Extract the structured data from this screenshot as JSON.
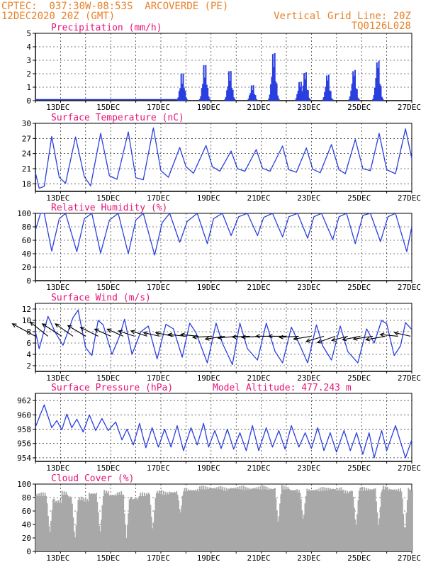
{
  "header": {
    "line1_left": "CPTEC:  037:30W-08:53S  ARCOVERDE (PE)",
    "line2_left": "12DEC2020 20Z (GMT)",
    "line1_right": "Vertical Grid Line: 20Z",
    "line2_right": "TQ0126L028"
  },
  "colors": {
    "header": "#e8812a",
    "title": "#e8127a",
    "line": "#2a3fe0",
    "bars": "#2a3fe0",
    "cloud": "#a8a8a8",
    "grid": "#000000"
  },
  "x_tick_labels": [
    "13DEC",
    "15DEC",
    "17DEC",
    "19DEC",
    "21DEC",
    "23DEC",
    "25DEC",
    "27DEC"
  ],
  "chart_data": [
    {
      "type": "bar",
      "title": "Precipitation (mm/h)",
      "ylim": [
        0,
        5
      ],
      "yticks": [
        0,
        1,
        2,
        3,
        4,
        5
      ],
      "day_range": [
        12.1,
        27.1
      ],
      "events": [
        {
          "day": 17.95,
          "peak": 2.3
        },
        {
          "day": 18.85,
          "peak": 3.0
        },
        {
          "day": 19.85,
          "peak": 2.5
        },
        {
          "day": 20.75,
          "peak": 1.3
        },
        {
          "day": 21.6,
          "peak": 4.0
        },
        {
          "day": 22.65,
          "peak": 1.6
        },
        {
          "day": 22.85,
          "peak": 2.4
        },
        {
          "day": 23.75,
          "peak": 2.2
        },
        {
          "day": 24.8,
          "peak": 2.6
        },
        {
          "day": 25.75,
          "peak": 3.4
        }
      ]
    },
    {
      "type": "line",
      "title": "Surface Temperature (nC)",
      "ylim": [
        16.5,
        30
      ],
      "yticks": [
        18,
        21,
        24,
        27,
        30
      ],
      "points": [
        [
          12.1,
          20.2
        ],
        [
          12.25,
          17.1
        ],
        [
          12.45,
          17.5
        ],
        [
          12.75,
          27.4
        ],
        [
          13.05,
          19.3
        ],
        [
          13.3,
          18.1
        ],
        [
          13.7,
          27.3
        ],
        [
          14.05,
          19.4
        ],
        [
          14.3,
          17.6
        ],
        [
          14.7,
          28.0
        ],
        [
          15.05,
          19.6
        ],
        [
          15.35,
          18.9
        ],
        [
          15.8,
          28.3
        ],
        [
          16.1,
          19.2
        ],
        [
          16.4,
          18.8
        ],
        [
          16.8,
          29.1
        ],
        [
          17.1,
          20.6
        ],
        [
          17.4,
          19.3
        ],
        [
          17.85,
          25.2
        ],
        [
          18.1,
          21.4
        ],
        [
          18.4,
          20.1
        ],
        [
          18.9,
          25.6
        ],
        [
          19.15,
          21.4
        ],
        [
          19.45,
          20.5
        ],
        [
          19.9,
          24.5
        ],
        [
          20.15,
          21.0
        ],
        [
          20.45,
          20.5
        ],
        [
          20.9,
          24.8
        ],
        [
          21.15,
          21.1
        ],
        [
          21.45,
          20.5
        ],
        [
          21.95,
          25.5
        ],
        [
          22.2,
          20.8
        ],
        [
          22.5,
          20.3
        ],
        [
          22.9,
          25.1
        ],
        [
          23.15,
          20.9
        ],
        [
          23.45,
          20.2
        ],
        [
          23.9,
          25.8
        ],
        [
          24.2,
          20.8
        ],
        [
          24.45,
          20.0
        ],
        [
          24.85,
          26.8
        ],
        [
          25.15,
          21.0
        ],
        [
          25.45,
          20.6
        ],
        [
          25.8,
          28.0
        ],
        [
          26.1,
          20.8
        ],
        [
          26.45,
          20.0
        ],
        [
          26.85,
          28.9
        ],
        [
          27.1,
          23.0
        ]
      ]
    },
    {
      "type": "line",
      "title": "Relative Humidity (%)",
      "ylim": [
        0,
        100
      ],
      "yticks": [
        0,
        20,
        40,
        60,
        80,
        100
      ],
      "points": [
        [
          12.1,
          75
        ],
        [
          12.3,
          100
        ],
        [
          12.45,
          100
        ],
        [
          12.75,
          44
        ],
        [
          13.05,
          92
        ],
        [
          13.3,
          100
        ],
        [
          13.75,
          43
        ],
        [
          14.05,
          92
        ],
        [
          14.35,
          100
        ],
        [
          14.7,
          41
        ],
        [
          15.05,
          90
        ],
        [
          15.4,
          100
        ],
        [
          15.8,
          40
        ],
        [
          16.1,
          90
        ],
        [
          16.4,
          100
        ],
        [
          16.85,
          38
        ],
        [
          17.15,
          86
        ],
        [
          17.45,
          100
        ],
        [
          17.85,
          57
        ],
        [
          18.15,
          88
        ],
        [
          18.55,
          100
        ],
        [
          18.95,
          55
        ],
        [
          19.2,
          92
        ],
        [
          19.55,
          100
        ],
        [
          19.9,
          67
        ],
        [
          20.2,
          95
        ],
        [
          20.55,
          100
        ],
        [
          20.95,
          67
        ],
        [
          21.2,
          94
        ],
        [
          21.55,
          100
        ],
        [
          21.95,
          65
        ],
        [
          22.2,
          95
        ],
        [
          22.55,
          100
        ],
        [
          22.95,
          63
        ],
        [
          23.2,
          95
        ],
        [
          23.5,
          100
        ],
        [
          23.95,
          61
        ],
        [
          24.2,
          95
        ],
        [
          24.5,
          100
        ],
        [
          24.85,
          55
        ],
        [
          25.15,
          97
        ],
        [
          25.45,
          100
        ],
        [
          25.85,
          58
        ],
        [
          26.15,
          95
        ],
        [
          26.45,
          100
        ],
        [
          26.9,
          43
        ],
        [
          27.1,
          80
        ]
      ]
    },
    {
      "type": "line",
      "title": "Surface Wind (m/s)",
      "ylim": [
        1,
        13
      ],
      "yticks": [
        2,
        4,
        6,
        8,
        10,
        12
      ],
      "points": [
        [
          12.1,
          8
        ],
        [
          12.25,
          5.0
        ],
        [
          12.6,
          10.7
        ],
        [
          12.9,
          7.8
        ],
        [
          13.2,
          5.6
        ],
        [
          13.6,
          10.5
        ],
        [
          13.8,
          11.8
        ],
        [
          14.1,
          5.2
        ],
        [
          14.35,
          3.8
        ],
        [
          14.6,
          10.0
        ],
        [
          14.8,
          9.2
        ],
        [
          15.15,
          4.0
        ],
        [
          15.45,
          7.2
        ],
        [
          15.65,
          10.2
        ],
        [
          15.95,
          4.0
        ],
        [
          16.3,
          8.0
        ],
        [
          16.6,
          9.0
        ],
        [
          16.95,
          3.2
        ],
        [
          17.3,
          9.3
        ],
        [
          17.6,
          8.5
        ],
        [
          17.95,
          3.5
        ],
        [
          18.25,
          9.5
        ],
        [
          18.5,
          7.8
        ],
        [
          18.95,
          2.5
        ],
        [
          19.3,
          9.5
        ],
        [
          19.55,
          6.0
        ],
        [
          19.95,
          2.2
        ],
        [
          20.25,
          9.5
        ],
        [
          20.55,
          5.0
        ],
        [
          20.95,
          3.0
        ],
        [
          21.3,
          9.5
        ],
        [
          21.65,
          4.5
        ],
        [
          21.95,
          2.5
        ],
        [
          22.3,
          8.8
        ],
        [
          22.6,
          6.0
        ],
        [
          22.95,
          2.5
        ],
        [
          23.3,
          9.2
        ],
        [
          23.55,
          5.5
        ],
        [
          23.9,
          3.0
        ],
        [
          24.25,
          9.0
        ],
        [
          24.55,
          4.5
        ],
        [
          24.95,
          2.5
        ],
        [
          25.3,
          8.5
        ],
        [
          25.6,
          6.0
        ],
        [
          25.9,
          10.0
        ],
        [
          26.1,
          9.4
        ],
        [
          26.4,
          3.8
        ],
        [
          26.65,
          5.5
        ],
        [
          26.85,
          9.6
        ],
        [
          27.1,
          8.4
        ]
      ],
      "arrows": [
        {
          "day": 12.1,
          "u": 6.5,
          "v": -3.5
        },
        {
          "day": 12.6,
          "u": 5.0,
          "v": -4.0
        },
        {
          "day": 13.15,
          "u": 5.5,
          "v": -3.5
        },
        {
          "day": 13.6,
          "u": 5.0,
          "v": -3.5
        },
        {
          "day": 14.1,
          "u": 5.0,
          "v": -3.0
        },
        {
          "day": 14.6,
          "u": 5.0,
          "v": -2.5
        },
        {
          "day": 15.1,
          "u": 4.5,
          "v": -2.0
        },
        {
          "day": 15.6,
          "u": 4.5,
          "v": -2.0
        },
        {
          "day": 16.05,
          "u": 4.5,
          "v": -1.5
        },
        {
          "day": 16.55,
          "u": 4.5,
          "v": -1.5
        },
        {
          "day": 17.05,
          "u": 4.5,
          "v": -1.0
        },
        {
          "day": 17.6,
          "u": 5.0,
          "v": -1.0
        },
        {
          "day": 18.1,
          "u": 5.0,
          "v": -0.5
        },
        {
          "day": 18.6,
          "u": 5.0,
          "v": -0.5
        },
        {
          "day": 19.15,
          "u": 5.5,
          "v": 0.3
        },
        {
          "day": 19.65,
          "u": 5.5,
          "v": 0.8
        },
        {
          "day": 20.15,
          "u": 5.5,
          "v": 0.5
        },
        {
          "day": 20.65,
          "u": 5.0,
          "v": 0.2
        },
        {
          "day": 21.1,
          "u": 5.5,
          "v": 0.3
        },
        {
          "day": 21.6,
          "u": 5.0,
          "v": 0.0
        },
        {
          "day": 22.1,
          "u": 5.0,
          "v": 0.0
        },
        {
          "day": 22.6,
          "u": 5.5,
          "v": 0.3
        },
        {
          "day": 23.1,
          "u": 5.0,
          "v": 0.8
        },
        {
          "day": 23.6,
          "u": 5.0,
          "v": 1.5
        },
        {
          "day": 24.05,
          "u": 5.0,
          "v": 1.8
        },
        {
          "day": 24.55,
          "u": 4.5,
          "v": 1.2
        },
        {
          "day": 25.05,
          "u": 5.0,
          "v": 1.0
        },
        {
          "day": 25.55,
          "u": 5.5,
          "v": 0.8
        },
        {
          "day": 26.05,
          "u": 5.5,
          "v": 1.0
        },
        {
          "day": 26.55,
          "u": 5.0,
          "v": -0.5
        },
        {
          "day": 27.05,
          "u": 4.5,
          "v": -1.0
        }
      ]
    },
    {
      "type": "line",
      "title": "Surface Pressure (hPa)",
      "annotation": "Model Altitude: 477.243 m",
      "ylim": [
        953.5,
        963
      ],
      "yticks": [
        954,
        956,
        958,
        960,
        962
      ],
      "points": [
        [
          12.1,
          958.3
        ],
        [
          12.45,
          961.4
        ],
        [
          12.75,
          958.2
        ],
        [
          12.95,
          959.2
        ],
        [
          13.15,
          957.9
        ],
        [
          13.35,
          960.1
        ],
        [
          13.55,
          958.2
        ],
        [
          13.75,
          959.4
        ],
        [
          14.0,
          957.6
        ],
        [
          14.25,
          960.0
        ],
        [
          14.5,
          957.8
        ],
        [
          14.75,
          959.5
        ],
        [
          15.0,
          957.8
        ],
        [
          15.3,
          959.0
        ],
        [
          15.55,
          956.5
        ],
        [
          15.75,
          958.0
        ],
        [
          16.0,
          955.8
        ],
        [
          16.25,
          958.8
        ],
        [
          16.5,
          955.4
        ],
        [
          16.75,
          958.2
        ],
        [
          17.0,
          955.5
        ],
        [
          17.25,
          958.0
        ],
        [
          17.5,
          955.5
        ],
        [
          17.75,
          958.5
        ],
        [
          18.0,
          955.0
        ],
        [
          18.3,
          958.2
        ],
        [
          18.55,
          955.8
        ],
        [
          18.8,
          958.8
        ],
        [
          19.0,
          955.5
        ],
        [
          19.25,
          957.8
        ],
        [
          19.5,
          955.3
        ],
        [
          19.75,
          958.0
        ],
        [
          20.0,
          955.2
        ],
        [
          20.25,
          957.5
        ],
        [
          20.5,
          955.0
        ],
        [
          20.75,
          958.5
        ],
        [
          21.0,
          955.0
        ],
        [
          21.3,
          958.2
        ],
        [
          21.55,
          955.5
        ],
        [
          21.8,
          957.8
        ],
        [
          22.05,
          955.2
        ],
        [
          22.3,
          958.5
        ],
        [
          22.6,
          955.5
        ],
        [
          22.85,
          957.5
        ],
        [
          23.1,
          955.3
        ],
        [
          23.35,
          958.2
        ],
        [
          23.6,
          955.0
        ],
        [
          23.85,
          957.5
        ],
        [
          24.1,
          954.8
        ],
        [
          24.4,
          957.8
        ],
        [
          24.65,
          955.0
        ],
        [
          24.9,
          957.5
        ],
        [
          25.15,
          954.5
        ],
        [
          25.4,
          957.5
        ],
        [
          25.6,
          954.0
        ],
        [
          25.9,
          957.8
        ],
        [
          26.1,
          955.0
        ],
        [
          26.45,
          958.5
        ],
        [
          26.85,
          954.0
        ],
        [
          27.1,
          956.5
        ]
      ]
    },
    {
      "type": "bar",
      "title": "Cloud Cover (%)",
      "ylim": [
        0,
        100
      ],
      "yticks": [
        0,
        20,
        40,
        60,
        80,
        100
      ],
      "segments": [
        [
          12.15,
          88
        ],
        [
          12.5,
          82
        ],
        [
          12.85,
          78
        ],
        [
          13.1,
          90
        ],
        [
          13.35,
          85
        ],
        [
          13.6,
          82
        ],
        [
          13.95,
          80
        ],
        [
          14.2,
          90
        ],
        [
          14.5,
          88
        ],
        [
          14.8,
          92
        ],
        [
          15.0,
          88
        ],
        [
          15.3,
          90
        ],
        [
          15.6,
          85
        ],
        [
          15.9,
          82
        ],
        [
          16.2,
          88
        ],
        [
          16.5,
          90
        ],
        [
          16.8,
          92
        ],
        [
          17.1,
          90
        ],
        [
          17.4,
          92
        ],
        [
          17.7,
          95
        ],
        [
          18.0,
          95
        ],
        [
          18.3,
          95
        ],
        [
          18.6,
          98
        ],
        [
          18.9,
          98
        ],
        [
          19.2,
          98
        ],
        [
          19.5,
          96
        ],
        [
          19.8,
          98
        ],
        [
          20.1,
          98
        ],
        [
          20.4,
          97
        ],
        [
          20.7,
          98
        ],
        [
          21.0,
          98
        ],
        [
          21.3,
          97
        ],
        [
          21.6,
          99
        ],
        [
          21.9,
          98
        ],
        [
          22.2,
          95
        ],
        [
          22.5,
          93
        ],
        [
          22.8,
          95
        ],
        [
          23.1,
          95
        ],
        [
          23.4,
          96
        ],
        [
          23.7,
          97
        ],
        [
          24.0,
          96
        ],
        [
          24.3,
          92
        ],
        [
          24.6,
          94
        ],
        [
          24.9,
          96
        ],
        [
          25.2,
          96
        ],
        [
          25.5,
          97
        ],
        [
          25.8,
          98
        ],
        [
          26.1,
          96
        ],
        [
          26.4,
          95
        ],
        [
          26.7,
          97
        ],
        [
          27.0,
          95
        ]
      ],
      "dips": [
        {
          "day": 12.65,
          "min": 25
        },
        {
          "day": 13.65,
          "min": 15
        },
        {
          "day": 14.65,
          "min": 25
        },
        {
          "day": 15.7,
          "min": 20
        },
        {
          "day": 16.75,
          "min": 30
        },
        {
          "day": 17.85,
          "min": 55
        },
        {
          "day": 21.75,
          "min": 40
        },
        {
          "day": 22.75,
          "min": 45
        },
        {
          "day": 24.85,
          "min": 35
        },
        {
          "day": 25.75,
          "min": 35
        },
        {
          "day": 26.8,
          "min": 25
        }
      ]
    }
  ]
}
